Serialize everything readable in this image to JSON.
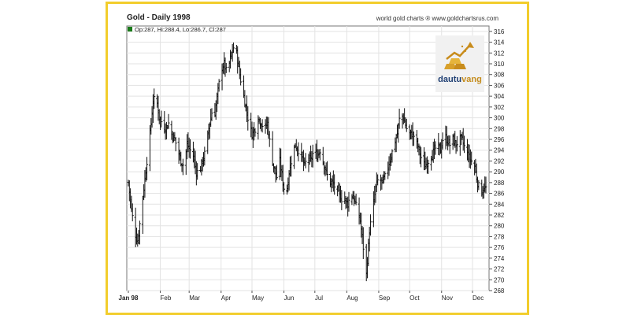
{
  "header": {
    "title": "Gold - Daily 1998",
    "source": "world gold charts ® www.goldchartsrus.com"
  },
  "legend": {
    "text": "Op:287, Hi:288.4, Lo:286.7, Cl:287",
    "color": "#1a7a1a"
  },
  "logo": {
    "part1": "dautu",
    "part2": "vang",
    "icon": "gold-bars-arrow-icon"
  },
  "chart_data": {
    "type": "ohlc",
    "title": "Gold - Daily 1998",
    "ylim": [
      268,
      317
    ],
    "y_ticks": [
      268,
      270,
      272,
      274,
      276,
      278,
      280,
      282,
      284,
      286,
      288,
      290,
      292,
      294,
      296,
      298,
      300,
      302,
      304,
      306,
      308,
      310,
      312,
      314,
      316
    ],
    "x_ticks": [
      "Jan 98",
      "Feb",
      "Mar",
      "Apr",
      "May",
      "Jun",
      "Jul",
      "Aug",
      "Sep",
      "Oct",
      "Nov",
      "Dec"
    ],
    "grid": true,
    "bar_color": "#111111",
    "close_path": [
      [
        0,
        288
      ],
      [
        3,
        283
      ],
      [
        6,
        279
      ],
      [
        9,
        277
      ],
      [
        12,
        282
      ],
      [
        15,
        287
      ],
      [
        18,
        292
      ],
      [
        21,
        297
      ],
      [
        24,
        303
      ],
      [
        27,
        304
      ],
      [
        30,
        300
      ],
      [
        33,
        299
      ],
      [
        36,
        298
      ],
      [
        39,
        299
      ],
      [
        42,
        297
      ],
      [
        45,
        296
      ],
      [
        48,
        294
      ],
      [
        51,
        292
      ],
      [
        54,
        291
      ],
      [
        57,
        295
      ],
      [
        60,
        294
      ],
      [
        63,
        293
      ],
      [
        66,
        290
      ],
      [
        69,
        290
      ],
      [
        72,
        292
      ],
      [
        75,
        294
      ],
      [
        78,
        298
      ],
      [
        81,
        301
      ],
      [
        84,
        301
      ],
      [
        87,
        305
      ],
      [
        90,
        309
      ],
      [
        93,
        310
      ],
      [
        96,
        308
      ],
      [
        99,
        311
      ],
      [
        102,
        313
      ],
      [
        105,
        312
      ],
      [
        108,
        308
      ],
      [
        111,
        305
      ],
      [
        114,
        302
      ],
      [
        117,
        299
      ],
      [
        120,
        297
      ],
      [
        123,
        298
      ],
      [
        126,
        300
      ],
      [
        129,
        299
      ],
      [
        132,
        298
      ],
      [
        135,
        299
      ],
      [
        138,
        294
      ],
      [
        141,
        291
      ],
      [
        144,
        289
      ],
      [
        147,
        292
      ],
      [
        150,
        288
      ],
      [
        153,
        285
      ],
      [
        156,
        290
      ],
      [
        159,
        293
      ],
      [
        162,
        295
      ],
      [
        165,
        294
      ],
      [
        168,
        293
      ],
      [
        171,
        291
      ],
      [
        174,
        293
      ],
      [
        177,
        292
      ],
      [
        180,
        294
      ],
      [
        183,
        293
      ],
      [
        186,
        294
      ],
      [
        189,
        292
      ],
      [
        192,
        290
      ],
      [
        195,
        288
      ],
      [
        198,
        288
      ],
      [
        201,
        287
      ],
      [
        204,
        286
      ],
      [
        207,
        285
      ],
      [
        210,
        285
      ],
      [
        213,
        284
      ],
      [
        216,
        286
      ],
      [
        219,
        285
      ],
      [
        222,
        283
      ],
      [
        225,
        281
      ],
      [
        228,
        276
      ],
      [
        231,
        271
      ],
      [
        234,
        279
      ],
      [
        237,
        283
      ],
      [
        240,
        287
      ],
      [
        243,
        289
      ],
      [
        246,
        288
      ],
      [
        249,
        289
      ],
      [
        252,
        291
      ],
      [
        255,
        293
      ],
      [
        258,
        295
      ],
      [
        261,
        297
      ],
      [
        264,
        301
      ],
      [
        267,
        300
      ],
      [
        270,
        298
      ],
      [
        273,
        297
      ],
      [
        276,
        297
      ],
      [
        279,
        296
      ],
      [
        282,
        294
      ],
      [
        285,
        292
      ],
      [
        288,
        291
      ],
      [
        291,
        292
      ],
      [
        294,
        293
      ],
      [
        297,
        294
      ],
      [
        300,
        295
      ],
      [
        303,
        294
      ],
      [
        306,
        297
      ],
      [
        309,
        296
      ],
      [
        312,
        295
      ],
      [
        315,
        296
      ],
      [
        318,
        295
      ],
      [
        321,
        296
      ],
      [
        324,
        296
      ],
      [
        327,
        294
      ],
      [
        330,
        293
      ],
      [
        333,
        292
      ],
      [
        336,
        291
      ],
      [
        339,
        288
      ],
      [
        342,
        286
      ],
      [
        345,
        287
      ],
      [
        347,
        287
      ]
    ]
  }
}
